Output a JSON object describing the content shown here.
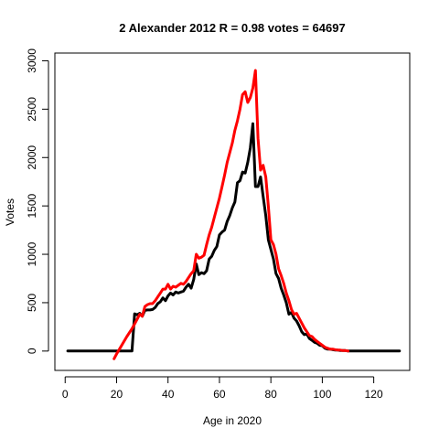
{
  "chart_data": {
    "type": "line",
    "title": "2 Alexander 2012 R = 0.98 votes = 64697",
    "xlabel": "Age in 2020",
    "ylabel": "Votes",
    "xlim": [
      -4,
      134
    ],
    "ylim": [
      -200,
      3080
    ],
    "xticks": [
      0,
      20,
      40,
      60,
      80,
      100,
      120
    ],
    "xtick_labels": [
      "0",
      "20",
      "40",
      "60",
      "80",
      "100",
      "120"
    ],
    "yticks": [
      0,
      500,
      1000,
      1500,
      2000,
      2500,
      3000
    ],
    "ytick_labels": [
      "0",
      "500",
      "1000",
      "1500",
      "2000",
      "2500",
      "3000"
    ],
    "grid": false,
    "legend": "none",
    "series": [
      {
        "color": "#000000",
        "x": [
          1,
          5,
          10,
          15,
          20,
          25,
          26,
          27,
          28,
          29,
          30,
          31,
          32,
          33,
          34,
          35,
          36,
          37,
          38,
          39,
          40,
          41,
          42,
          43,
          44,
          45,
          46,
          47,
          48,
          49,
          50,
          51,
          52,
          53,
          54,
          55,
          56,
          57,
          58,
          59,
          60,
          61,
          62,
          63,
          64,
          65,
          66,
          67,
          68,
          69,
          70,
          71,
          72,
          73,
          74,
          75,
          76,
          77,
          78,
          79,
          80,
          81,
          82,
          83,
          84,
          85,
          86,
          87,
          88,
          89,
          90,
          91,
          92,
          93,
          94,
          95,
          96,
          97,
          98,
          99,
          100,
          101,
          102,
          103,
          104,
          105,
          106,
          107,
          108,
          109,
          110,
          115,
          120,
          125,
          130
        ],
        "y": [
          0,
          0,
          0,
          0,
          0,
          0,
          0,
          385,
          375,
          390,
          360,
          420,
          425,
          425,
          430,
          450,
          490,
          510,
          550,
          520,
          570,
          600,
          580,
          610,
          600,
          610,
          620,
          660,
          690,
          650,
          740,
          900,
          790,
          810,
          800,
          830,
          950,
          980,
          1040,
          1080,
          1200,
          1230,
          1250,
          1340,
          1400,
          1480,
          1540,
          1740,
          1760,
          1850,
          1840,
          1950,
          2100,
          2350,
          1700,
          1700,
          1800,
          1600,
          1400,
          1150,
          1050,
          950,
          800,
          750,
          650,
          580,
          500,
          380,
          400,
          340,
          310,
          260,
          200,
          170,
          175,
          130,
          110,
          90,
          80,
          60,
          55,
          30,
          20,
          20,
          15,
          10,
          10,
          5,
          5,
          5,
          0,
          0,
          0,
          0,
          0
        ]
      },
      {
        "color": "#ff0000",
        "x": [
          19,
          20,
          22,
          24,
          26,
          27,
          28,
          29,
          30,
          31,
          32,
          33,
          34,
          35,
          36,
          37,
          38,
          39,
          40,
          41,
          42,
          43,
          44,
          45,
          46,
          47,
          48,
          49,
          50,
          51,
          52,
          53,
          54,
          55,
          56,
          57,
          58,
          59,
          60,
          61,
          62,
          63,
          64,
          65,
          66,
          67,
          68,
          69,
          70,
          71,
          72,
          73,
          74,
          75,
          76,
          77,
          78,
          79,
          80,
          81,
          82,
          83,
          84,
          85,
          86,
          87,
          88,
          89,
          90,
          91,
          92,
          93,
          94,
          95,
          96,
          97,
          98,
          99,
          100,
          101,
          102,
          103,
          104,
          105,
          106,
          107,
          108,
          109,
          110
        ],
        "y": [
          -80,
          -30,
          60,
          150,
          230,
          280,
          330,
          380,
          360,
          460,
          480,
          490,
          490,
          520,
          560,
          600,
          640,
          640,
          690,
          640,
          670,
          660,
          680,
          700,
          690,
          720,
          760,
          800,
          830,
          1000,
          960,
          970,
          990,
          1100,
          1200,
          1280,
          1380,
          1480,
          1580,
          1700,
          1820,
          1950,
          2050,
          2150,
          2280,
          2380,
          2500,
          2650,
          2680,
          2570,
          2620,
          2720,
          2900,
          2200,
          1870,
          1920,
          1800,
          1500,
          1150,
          1100,
          1000,
          850,
          780,
          700,
          600,
          520,
          430,
          380,
          390,
          340,
          290,
          240,
          200,
          160,
          150,
          120,
          100,
          80,
          60,
          40,
          30,
          20,
          20,
          15,
          10,
          10,
          5,
          5,
          0
        ]
      }
    ]
  }
}
